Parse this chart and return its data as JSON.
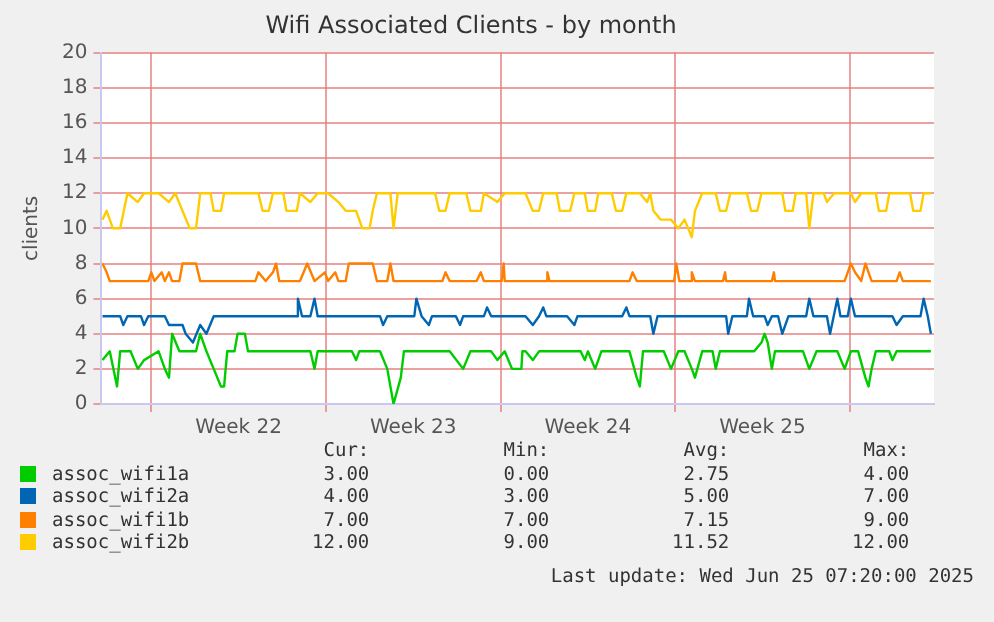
{
  "chart_data": {
    "type": "line",
    "title": "Wifi Associated Clients - by month",
    "ylabel": "clients",
    "xlim": [
      "2025-05-23T00:00",
      "2025-06-25T09:00"
    ],
    "xticks": [
      {
        "value": "2025-05-25T00:00",
        "label": null
      },
      {
        "value": "2025-05-28T12:00",
        "label": "Week 22"
      },
      {
        "value": "2025-06-01T00:00",
        "label": null
      },
      {
        "value": "2025-06-04T12:00",
        "label": "Week 23"
      },
      {
        "value": "2025-06-08T00:00",
        "label": null
      },
      {
        "value": "2025-06-11T12:00",
        "label": "Week 24"
      },
      {
        "value": "2025-06-15T00:00",
        "label": null
      },
      {
        "value": "2025-06-18T12:00",
        "label": "Week 25"
      },
      {
        "value": "2025-06-22T00:00",
        "label": null
      }
    ],
    "ylim": [
      0,
      20
    ],
    "yticks": [
      0,
      2,
      4,
      6,
      8,
      10,
      12,
      14,
      16,
      18,
      20
    ],
    "grid": true,
    "legend": "bottom left",
    "marker": "none",
    "line_style": "solid",
    "series": [
      {
        "name": "assoc_wifi1a",
        "color": "#00cc00",
        "x": [
          "2025-05-23T01:00",
          "2025-05-23T08:00",
          "2025-05-23T15:00",
          "2025-05-23T18:00",
          "2025-05-24T04:00",
          "2025-05-24T11:00",
          "2025-05-24T17:00",
          "2025-05-25T07:00",
          "2025-05-25T13:00",
          "2025-05-25T17:00",
          "2025-05-25T20:00",
          "2025-05-26T03:00",
          "2025-05-26T19:00",
          "2025-05-26T23:00",
          "2025-05-27T05:00",
          "2025-05-27T12:00",
          "2025-05-27T19:00",
          "2025-05-27T22:00",
          "2025-05-28T01:00",
          "2025-05-28T08:00",
          "2025-05-28T11:00",
          "2025-05-28T18:00",
          "2025-05-28T21:00",
          "2025-05-31T09:00",
          "2025-05-31T13:00",
          "2025-05-31T16:00",
          "2025-06-02T01:00",
          "2025-06-02T05:00",
          "2025-06-02T08:00",
          "2025-06-03T04:00",
          "2025-06-03T11:00",
          "2025-06-03T17:00",
          "2025-06-04T00:00",
          "2025-06-04T03:00",
          "2025-06-05T23:00",
          "2025-06-06T12:00",
          "2025-06-06T19:00",
          "2025-06-07T15:00",
          "2025-06-07T21:00",
          "2025-06-08T04:00",
          "2025-06-08T11:00",
          "2025-06-08T20:00",
          "2025-06-08T21:00",
          "2025-06-09T00:00",
          "2025-06-09T07:00",
          "2025-06-09T13:00",
          "2025-06-11T05:00",
          "2025-06-11T09:00",
          "2025-06-11T12:00",
          "2025-06-11T19:00",
          "2025-06-12T01:00",
          "2025-06-13T04:00",
          "2025-06-13T11:00",
          "2025-06-13T14:00",
          "2025-06-13T17:00",
          "2025-06-14T13:00",
          "2025-06-14T20:00",
          "2025-06-15T03:00",
          "2025-06-15T09:00",
          "2025-06-15T16:00",
          "2025-06-15T19:00",
          "2025-06-16T02:00",
          "2025-06-16T12:00",
          "2025-06-16T15:00",
          "2025-06-16T19:00",
          "2025-06-18T04:00",
          "2025-06-18T11:00",
          "2025-06-18T14:00",
          "2025-06-18T17:00",
          "2025-06-18T21:00",
          "2025-06-19T00:00",
          "2025-06-20T03:00",
          "2025-06-20T09:00",
          "2025-06-20T16:00",
          "2025-06-21T12:00",
          "2025-06-21T19:00",
          "2025-06-22T01:00",
          "2025-06-22T08:00",
          "2025-06-22T15:00",
          "2025-06-22T18:00",
          "2025-06-22T21:00",
          "2025-06-23T01:00",
          "2025-06-23T14:00",
          "2025-06-23T17:00",
          "2025-06-23T21:00",
          "2025-06-25T06:00"
        ],
        "values": [
          2.5,
          3,
          1,
          3,
          3,
          2,
          2.5,
          3,
          2,
          1.5,
          4,
          3,
          3,
          4,
          3,
          2,
          1,
          1,
          3,
          3,
          4,
          4,
          3,
          3,
          2,
          3,
          3,
          2.5,
          3,
          3,
          2,
          0,
          1.5,
          3,
          3,
          2,
          3,
          3,
          2.5,
          3,
          2,
          2,
          3,
          3,
          2.5,
          3,
          3,
          2.5,
          3,
          2,
          3,
          3,
          1.5,
          1,
          3,
          3,
          2,
          3,
          3,
          2,
          1.5,
          3,
          3,
          2,
          3,
          3,
          3.5,
          4,
          3.5,
          2,
          3,
          3,
          2,
          3,
          3,
          2,
          3,
          3,
          1.5,
          1,
          2,
          3,
          3,
          2.5,
          3,
          3
        ]
      },
      {
        "name": "assoc_wifi2a",
        "color": "#0066b3",
        "x": [
          "2025-05-23T01:00",
          "2025-05-23T18:00",
          "2025-05-23T21:00",
          "2025-05-24T01:00",
          "2025-05-24T14:00",
          "2025-05-24T17:00",
          "2025-05-24T21:00",
          "2025-05-25T13:00",
          "2025-05-25T17:00",
          "2025-05-25T23:00",
          "2025-05-26T06:00",
          "2025-05-26T09:00",
          "2025-05-26T16:00",
          "2025-05-26T23:00",
          "2025-05-27T05:00",
          "2025-05-27T12:00",
          "2025-05-30T20:00",
          "2025-05-30T21:00",
          "2025-05-31T01:00",
          "2025-05-31T09:00",
          "2025-05-31T13:00",
          "2025-05-31T16:00",
          "2025-06-03T04:00",
          "2025-06-03T07:00",
          "2025-06-03T11:00",
          "2025-06-04T13:00",
          "2025-06-04T15:00",
          "2025-06-04T20:00",
          "2025-06-05T03:00",
          "2025-06-05T06:00",
          "2025-06-06T05:00",
          "2025-06-06T09:00",
          "2025-06-06T12:00",
          "2025-06-07T08:00",
          "2025-06-07T11:00",
          "2025-06-07T15:00",
          "2025-06-08T04:00",
          "2025-06-09T00:00",
          "2025-06-09T07:00",
          "2025-06-09T13:00",
          "2025-06-09T17:00",
          "2025-06-09T20:00",
          "2025-06-10T16:00",
          "2025-06-10T23:00",
          "2025-06-11T02:00",
          "2025-06-12T21:00",
          "2025-06-13T01:00",
          "2025-06-13T04:00",
          "2025-06-14T00:00",
          "2025-06-14T03:00",
          "2025-06-14T07:00",
          "2025-06-17T01:00",
          "2025-06-17T03:00",
          "2025-06-17T07:00",
          "2025-06-17T21:00",
          "2025-06-17T23:00",
          "2025-06-18T03:00",
          "2025-06-18T14:00",
          "2025-06-18T17:00",
          "2025-06-18T21:00",
          "2025-06-19T03:00",
          "2025-06-19T07:00",
          "2025-06-19T13:00",
          "2025-06-20T06:00",
          "2025-06-20T09:00",
          "2025-06-20T13:00",
          "2025-06-21T02:00",
          "2025-06-21T05:00",
          "2025-06-21T12:00",
          "2025-06-21T15:00",
          "2025-06-21T22:00",
          "2025-06-22T01:00",
          "2025-06-22T05:00",
          "2025-06-23T17:00",
          "2025-06-23T21:00",
          "2025-06-24T03:00",
          "2025-06-24T20:00",
          "2025-06-24T23:00",
          "2025-06-25T03:00",
          "2025-06-25T06:00"
        ],
        "values": [
          5,
          5,
          4.5,
          5,
          5,
          4.5,
          5,
          5,
          4.5,
          4.5,
          4.5,
          4,
          3.5,
          4.5,
          4,
          5,
          5,
          6,
          5,
          5,
          6,
          5,
          5,
          4.5,
          5,
          5,
          6,
          5,
          4.5,
          5,
          5,
          4.5,
          5,
          5,
          5.5,
          5,
          5,
          5,
          4.5,
          5,
          5.5,
          5,
          5,
          4.5,
          5,
          5,
          5.5,
          5,
          5,
          4,
          5,
          5,
          4,
          5,
          5,
          6,
          5,
          5,
          4.5,
          5,
          5,
          4,
          5,
          5,
          6,
          5,
          5,
          4,
          6,
          5,
          5,
          6,
          5,
          5,
          4.5,
          5,
          5,
          6,
          5,
          4
        ]
      },
      {
        "name": "assoc_wifi1b",
        "color": "#ff8000",
        "x": [
          "2025-05-23T01:00",
          "2025-05-23T05:00",
          "2025-05-23T08:00",
          "2025-05-24T21:00",
          "2025-05-25T00:00",
          "2025-05-25T03:00",
          "2025-05-25T10:00",
          "2025-05-25T13:00",
          "2025-05-25T17:00",
          "2025-05-25T20:00",
          "2025-05-26T03:00",
          "2025-05-26T06:00",
          "2025-05-26T19:00",
          "2025-05-26T23:00",
          "2025-05-29T04:00",
          "2025-05-29T07:00",
          "2025-05-29T14:00",
          "2025-05-29T21:00",
          "2025-05-30T00:00",
          "2025-05-30T03:00",
          "2025-05-30T23:00",
          "2025-05-31T06:00",
          "2025-05-31T13:00",
          "2025-05-31T23:00",
          "2025-06-01T02:00",
          "2025-06-01T09:00",
          "2025-06-01T12:00",
          "2025-06-01T19:00",
          "2025-06-01T22:00",
          "2025-06-02T21:00",
          "2025-06-03T01:00",
          "2025-06-03T11:00",
          "2025-06-03T14:00",
          "2025-06-03T17:00",
          "2025-06-05T16:00",
          "2025-06-05T19:00",
          "2025-06-05T23:00",
          "2025-06-07T01:00",
          "2025-06-07T05:00",
          "2025-06-07T08:00",
          "2025-06-08T01:00",
          "2025-06-08T03:00",
          "2025-06-08T04:00",
          "2025-06-09T00:00",
          "2025-06-09T20:00",
          "2025-06-09T21:00",
          "2025-06-09T23:00",
          "2025-06-13T04:00",
          "2025-06-13T07:00",
          "2025-06-13T11:00",
          "2025-06-14T23:00",
          "2025-06-15T01:00",
          "2025-06-15T04:00",
          "2025-06-15T15:00",
          "2025-06-15T16:00",
          "2025-06-15T19:00",
          "2025-06-16T22:00",
          "2025-06-17T00:00",
          "2025-06-17T01:00",
          "2025-06-18T21:00",
          "2025-06-18T23:00",
          "2025-06-19T00:00",
          "2025-06-21T19:00",
          "2025-06-21T22:00",
          "2025-06-22T01:00",
          "2025-06-22T05:00",
          "2025-06-22T11:00",
          "2025-06-22T15:00",
          "2025-06-22T18:00",
          "2025-06-22T21:00",
          "2025-06-23T21:00",
          "2025-06-24T00:00",
          "2025-06-24T03:00",
          "2025-06-25T06:00"
        ],
        "values": [
          8,
          7.5,
          7,
          7,
          7.5,
          7,
          7.5,
          7,
          7.5,
          7,
          7,
          8,
          8,
          7,
          7,
          7.5,
          7,
          7.5,
          8,
          7,
          7,
          8,
          7,
          7.5,
          7,
          7.5,
          7,
          7,
          8,
          8,
          7,
          7,
          8,
          7,
          7,
          7.5,
          7,
          7,
          7.5,
          7,
          7,
          8,
          7,
          7,
          7,
          7.5,
          7,
          7,
          7.5,
          7,
          7,
          8,
          7,
          7,
          7.5,
          7,
          7,
          7.5,
          7,
          7,
          7.5,
          7,
          7,
          7.5,
          8,
          7.5,
          7,
          8,
          7.5,
          7,
          7,
          7.5,
          7,
          7
        ]
      },
      {
        "name": "assoc_wifi2b",
        "color": "#ffcc00",
        "x": [
          "2025-05-23T01:00",
          "2025-05-23T05:00",
          "2025-05-23T11:00",
          "2025-05-23T18:00",
          "2025-05-24T01:00",
          "2025-05-24T11:00",
          "2025-05-24T17:00",
          "2025-05-25T07:00",
          "2025-05-25T17:00",
          "2025-05-25T23:00",
          "2025-05-26T06:00",
          "2025-05-26T13:00",
          "2025-05-26T19:00",
          "2025-05-26T23:00",
          "2025-05-27T09:00",
          "2025-05-27T12:00",
          "2025-05-27T19:00",
          "2025-05-27T22:00",
          "2025-05-29T07:00",
          "2025-05-29T11:00",
          "2025-05-29T17:00",
          "2025-05-29T21:00",
          "2025-05-30T07:00",
          "2025-05-30T10:00",
          "2025-05-30T20:00",
          "2025-05-30T23:00",
          "2025-05-31T09:00",
          "2025-05-31T16:00",
          "2025-06-01T02:00",
          "2025-06-01T12:00",
          "2025-06-01T19:00",
          "2025-06-02T05:00",
          "2025-06-02T11:00",
          "2025-06-02T18:00",
          "2025-06-02T21:00",
          "2025-06-03T01:00",
          "2025-06-03T14:00",
          "2025-06-03T17:00",
          "2025-06-03T21:00",
          "2025-06-05T09:00",
          "2025-06-05T13:00",
          "2025-06-05T19:00",
          "2025-06-05T23:00",
          "2025-06-06T15:00",
          "2025-06-06T19:00",
          "2025-06-07T05:00",
          "2025-06-07T08:00",
          "2025-06-07T21:00",
          "2025-06-08T04:00",
          "2025-06-09T00:00",
          "2025-06-09T07:00",
          "2025-06-09T13:00",
          "2025-06-09T17:00",
          "2025-06-10T06:00",
          "2025-06-10T09:00",
          "2025-06-10T19:00",
          "2025-06-10T23:00",
          "2025-06-11T09:00",
          "2025-06-11T12:00",
          "2025-06-11T19:00",
          "2025-06-11T22:00",
          "2025-06-12T11:00",
          "2025-06-12T15:00",
          "2025-06-12T21:00",
          "2025-06-13T01:00",
          "2025-06-13T14:00",
          "2025-06-13T21:00",
          "2025-06-14T00:00",
          "2025-06-14T03:00",
          "2025-06-14T10:00",
          "2025-06-14T20:00",
          "2025-06-15T03:00",
          "2025-06-15T09:00",
          "2025-06-15T16:00",
          "2025-06-15T19:00",
          "2025-06-16T02:00",
          "2025-06-16T15:00",
          "2025-06-16T19:00",
          "2025-06-17T01:00",
          "2025-06-17T05:00",
          "2025-06-17T21:00",
          "2025-06-18T01:00",
          "2025-06-18T07:00",
          "2025-06-18T11:00",
          "2025-06-19T07:00",
          "2025-06-19T10:00",
          "2025-06-19T17:00",
          "2025-06-19T20:00",
          "2025-06-20T06:00",
          "2025-06-20T09:00",
          "2025-06-20T13:00",
          "2025-06-20T23:00",
          "2025-06-21T02:00",
          "2025-06-21T09:00",
          "2025-06-22T01:00",
          "2025-06-22T05:00",
          "2025-06-22T11:00",
          "2025-06-23T01:00",
          "2025-06-23T04:00",
          "2025-06-23T11:00",
          "2025-06-23T14:00",
          "2025-06-24T10:00",
          "2025-06-24T13:00",
          "2025-06-24T20:00",
          "2025-06-24T23:00",
          "2025-06-25T06:00"
        ],
        "values": [
          10.5,
          11,
          10,
          10,
          12,
          11.5,
          12,
          12,
          11.5,
          12,
          11,
          10,
          10,
          12,
          12,
          11,
          11,
          12,
          12,
          11,
          11,
          12,
          12,
          11,
          11,
          12,
          11.5,
          12,
          12,
          11.5,
          11,
          11,
          10,
          10,
          11,
          12,
          12,
          10,
          12,
          12,
          11,
          11,
          12,
          12,
          11,
          11,
          12,
          11.5,
          12,
          12,
          11,
          11,
          12,
          12,
          11,
          11,
          12,
          12,
          11,
          11,
          12,
          12,
          11,
          11,
          12,
          12,
          11.5,
          12,
          11,
          10.5,
          10.5,
          10,
          10.5,
          9.5,
          11,
          12,
          12,
          11,
          11,
          12,
          12,
          11,
          11,
          12,
          12,
          11,
          11,
          12,
          12,
          10,
          12,
          12,
          11.5,
          12,
          12,
          11.5,
          12,
          12,
          11,
          11,
          12,
          12,
          11,
          11,
          12,
          12
        ]
      }
    ],
    "annotations": [
      "Cur:",
      "Min:",
      "Avg:",
      "Max:",
      "3.00",
      "0.00",
      "2.75",
      "4.00",
      "4.00",
      "3.00",
      "5.00",
      "7.00",
      "7.00",
      "7.00",
      "7.15",
      "9.00",
      "12.00",
      "9.00",
      "11.52",
      "12.00",
      "Last update: Wed Jun 25 07:20:00 2025"
    ]
  }
}
